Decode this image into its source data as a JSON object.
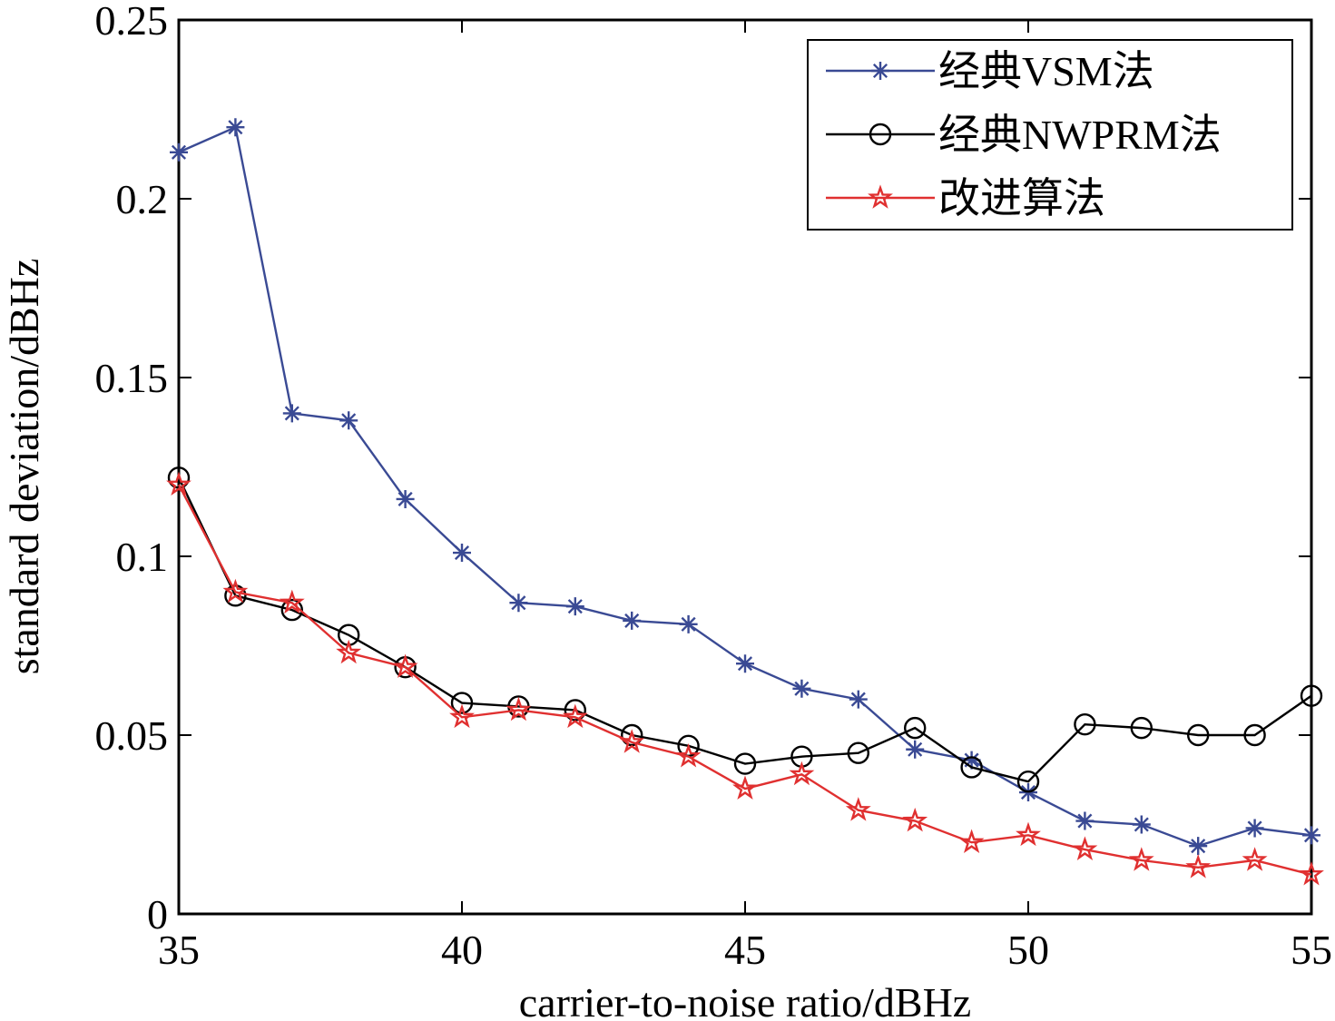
{
  "chart_data": {
    "type": "line",
    "title": "",
    "xlabel": "carrier-to-noise ratio/dBHz",
    "ylabel": "standard deviation/dBHz",
    "xlim": [
      35,
      55
    ],
    "ylim": [
      0,
      0.25
    ],
    "xticks": [
      "35",
      "40",
      "45",
      "50",
      "55"
    ],
    "yticks": [
      "0",
      "0.05",
      "0.1",
      "0.15",
      "0.2",
      "0.25"
    ],
    "grid": false,
    "legend_position": "top-right",
    "x": [
      35,
      36,
      37,
      38,
      39,
      40,
      41,
      42,
      43,
      44,
      45,
      46,
      47,
      48,
      49,
      50,
      51,
      52,
      53,
      54,
      55
    ],
    "series": [
      {
        "name": "经典VSM法",
        "color": "#3a4a94",
        "marker": "asterisk",
        "values": [
          0.213,
          0.22,
          0.14,
          0.138,
          0.116,
          0.101,
          0.087,
          0.086,
          0.082,
          0.081,
          0.07,
          0.063,
          0.06,
          0.046,
          0.043,
          0.034,
          0.026,
          0.025,
          0.019,
          0.024,
          0.022
        ]
      },
      {
        "name": "经典NWPRM法",
        "color": "#000000",
        "marker": "circle",
        "values": [
          0.122,
          0.089,
          0.085,
          0.078,
          0.069,
          0.059,
          0.058,
          0.057,
          0.05,
          0.047,
          0.042,
          0.044,
          0.045,
          0.052,
          0.041,
          0.037,
          0.053,
          0.052,
          0.05,
          0.05,
          0.061
        ]
      },
      {
        "name": "改进算法",
        "color": "#e03030",
        "marker": "pentagram",
        "values": [
          0.12,
          0.09,
          0.087,
          0.073,
          0.069,
          0.055,
          0.057,
          0.055,
          0.048,
          0.044,
          0.035,
          0.039,
          0.029,
          0.026,
          0.02,
          0.022,
          0.018,
          0.015,
          0.013,
          0.015,
          0.011
        ]
      }
    ]
  }
}
